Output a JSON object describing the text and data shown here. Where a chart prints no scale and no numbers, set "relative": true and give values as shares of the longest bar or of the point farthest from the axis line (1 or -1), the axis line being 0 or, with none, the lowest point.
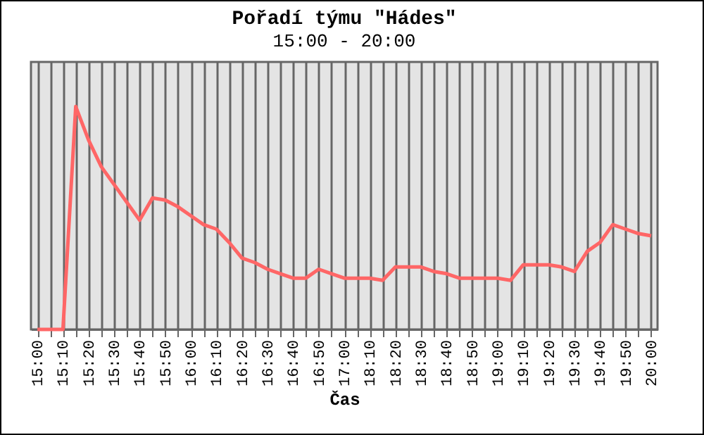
{
  "chart_data": {
    "type": "line",
    "title": "Pořadí týmu \"Hádes\"",
    "subtitle": "15:00 - 20:00",
    "xlabel": "Čas",
    "categories": [
      "15:00",
      null,
      "15:10",
      null,
      "15:20",
      null,
      "15:30",
      null,
      "15:40",
      null,
      "15:50",
      null,
      "16:00",
      null,
      "16:10",
      null,
      "16:20",
      null,
      "16:30",
      null,
      "16:40",
      null,
      "16:50",
      null,
      "17:00",
      null,
      "18:10",
      null,
      "18:20",
      null,
      "18:30",
      null,
      "18:40",
      null,
      "18:50",
      null,
      "19:00",
      null,
      "19:10",
      null,
      "19:20",
      null,
      "19:30",
      null,
      "19:40",
      null,
      "19:50",
      null,
      "20:00"
    ],
    "series": [
      {
        "color": "#ff6666",
        "values": [
          0,
          0,
          0,
          1.0,
          0.85,
          0.73,
          0.65,
          0.57,
          0.49,
          0.59,
          0.58,
          0.55,
          0.51,
          0.47,
          0.45,
          0.39,
          0.32,
          0.3,
          0.27,
          0.25,
          0.23,
          0.23,
          0.27,
          0.25,
          0.23,
          0.23,
          0.23,
          0.22,
          0.28,
          0.28,
          0.28,
          0.26,
          0.25,
          0.23,
          0.23,
          0.23,
          0.23,
          0.22,
          0.29,
          0.29,
          0.29,
          0.28,
          0.26,
          0.35,
          0.39,
          0.47,
          0.45,
          0.43,
          0.42
        ]
      }
    ],
    "relative": true,
    "grid": "x",
    "marker": "none",
    "line_style": "solid"
  }
}
